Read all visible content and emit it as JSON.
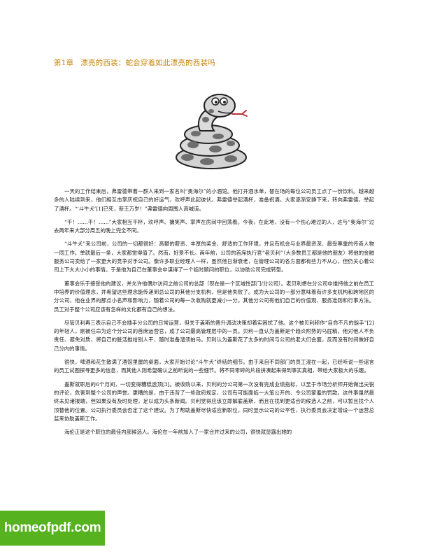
{
  "chapter": {
    "number": "第1章",
    "title": "漂亮的西装：蛇会穿着如此漂亮的西装吗"
  },
  "figure": {
    "icon": "cartoon-snake-illustration"
  },
  "paragraphs": [
    "一天的工作结束后，弗雷德带着一群人来到一家名叫“奥海尔”的小酒馆。他打开酒水单，替在场的每位公司员工点了一份饮料。越来越多的人陆续到来，他们相互击掌庆祝自己的好运气，欢呼声此起彼伏。弗雷德举起酒杯，准备祝酒。大家逐渐安静下来，转向弗雷德，举起了酒杯。“‘斗牛犬’[1]已死，新王万岁！”弗雷德向周围人高喊道。",
    "“干！……干！……”大家相互干杯，欢呼声、攘笑声、掌声在房间中回荡着。今夜，在此地，没有一个伤心难过的人，这与“奥海尔”过去两年来大部分周五的晚上完全不同。",
    "“斗牛犬”来公司前，公司的一切都很好：高额的薪资、丰厚的奖金、舒适的工作环境，并且有机会与业界最资深、最受尊重的传奇人物一同工作。单就最后一条，大家都觉得值了。然而，好景不长。两年前，公司的首席执行官“老贝利”（大多数员工都是他的朋友）将他的金融服务公司卖给了一家更大的竞争对手公司。像许多职业经理人一样，虽然他日渐衰老，在管理公司的各方面都有些力不从心，但仍关心着公司上下大大小小的事情。于是他为自己在董事会中谋得了一个临时顾问的职位，以协助公司完成转型。",
    "董事会乐于接受他的建议，并允许他偶尔访问之前公司的总部（现在是一个区域性部门/分公司）。老贝利想在分公司中维持他之前在员工中培养的价值理念，并希望这些理念能传递到总公司的其他分支机构，但是他失败了。成为大公司的一部分意味着有许多支机构和跨地区的分公司，他在业界的那点小名声和影响力，随着公司的每一次收购就更减小一分。其他分公司有他们自己的价值观、服务准则和行事方法。员工对于整个公司应该有怎样的文化都有自己的想法。",
    "尽管贝利再三表示自己不会插手分公司的日常运营，但关于盖斯的晋升调动决策却着实困扰了他。这个被贝利称作“自命不凡的能手”[2]的年轻人，刚被任命为这个分公司的首席运营官，成了公司最高管理层中的一员。贝利一直认为盖斯是个趋炎附势的马屁精，他对他人不负责任、避免对质、将自己的脏活推给别人干、随时准备溜须拍马。贝利认为盖斯花了太多的时间与公司的老大们会面，反而没有时间做好自己分内的事情。",
    "很快，啤酒和花生散满了酒馆里屋的桌面，大家开始讨论“斗牛犬”终结的细节。由于来自不同部门的员工混在一起，已经听说一些谣言的员工试图探寻更多的信息，而其他人则希望确认之前听说的一些细节。将不同零碎的片段拼凑起来得到事实真相，带给大家极大的乐趣。",
    "盖斯就职后的6个月间，一切变得糟糕透顶[3]。被收购以来，贝利的分公司第一次没有完成业绩指标，以至于市场分析师开始做出尖锐的评论，危害到整个公司的声誉。更糟的是，由于违背了一些政府规定，公司有可能面临一大笔公开的、令公司蒙羞的罚款。这件事虽然最终未见诸报端，但如果没有及时处理，足以成为头条新闻。贝利觉得应该立即解雇盖斯，而且在找到更适合的候选人之前，可以暂且找个人顶替他的位置。公司执行委员会否定了这个建议。为了帮助盖斯尽快适应新职位，同时显示公司的公平性，执行委员会决定增设一个运营总监来协助盖斯工作。",
    "海伦正是这个职位的最佳内部候选人。海伦在一年前加入了一家合并过来的公司，很快就显露出她的"
  ],
  "watermark": {
    "text": "homeofpdf.com"
  },
  "colors": {
    "chapter_title": "#c8860a",
    "watermark_bg": "#56b31f"
  }
}
